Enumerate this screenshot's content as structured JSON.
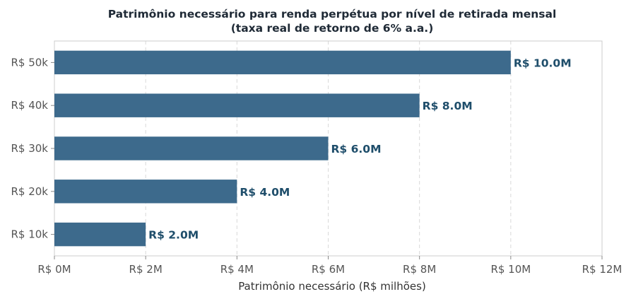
{
  "chart_data": {
    "type": "bar",
    "orientation": "horizontal",
    "title": "Patrimônio necessário para renda perpétua por nível de retirada mensal",
    "subtitle": "(taxa real de retorno de 6% a.a.)",
    "xlabel": "Patrimônio necessário (R$ milhões)",
    "ylabel": "",
    "categories": [
      "R$ 10k",
      "R$ 20k",
      "R$ 30k",
      "R$ 40k",
      "R$ 50k"
    ],
    "values": [
      2.0,
      4.0,
      6.0,
      8.0,
      10.0
    ],
    "data_labels": [
      "R$ 2.0M",
      "R$ 4.0M",
      "R$ 6.0M",
      "R$ 8.0M",
      "R$ 10.0M"
    ],
    "xlim": [
      0,
      12
    ],
    "x_ticks": [
      0,
      2,
      4,
      6,
      8,
      10,
      12
    ],
    "x_tick_labels": [
      "R$ 0M",
      "R$ 2M",
      "R$ 4M",
      "R$ 6M",
      "R$ 8M",
      "R$ 10M",
      "R$ 12M"
    ],
    "grid": "x dashed",
    "bar_color": "#3d6a8c",
    "label_color": "#1f4e6b"
  }
}
